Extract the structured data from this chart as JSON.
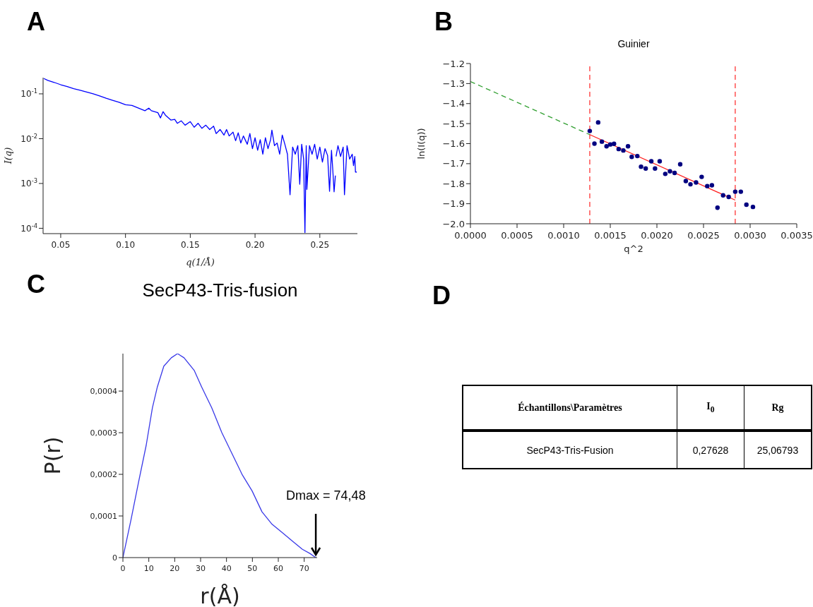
{
  "chart_data": [
    {
      "type": "line",
      "annotations": [
        "A"
      ],
      "xlabel": "q(1/Å)",
      "ylabel": "I(q)",
      "log": "y",
      "xlim": [
        0.0364,
        0.279
      ],
      "ylim": [
        7.6e-05,
        0.23
      ],
      "xticks": [
        {
          "value": 0.05,
          "label": "0.05"
        },
        {
          "value": 0.1,
          "label": "0.10"
        },
        {
          "value": 0.15,
          "label": "0.15"
        },
        {
          "value": 0.2,
          "label": "0.20"
        },
        {
          "value": 0.25,
          "label": "0.25"
        }
      ],
      "yticks": [
        {
          "value": 0.0001,
          "label": "10$^{-4}$"
        },
        {
          "value": 0.001,
          "label": "10$^{-3}$"
        },
        {
          "value": 0.01,
          "label": "10$^{-2}$"
        },
        {
          "value": 0.1,
          "label": "10$^{-1}$"
        }
      ],
      "x": [
        0.037,
        0.04,
        0.045,
        0.05,
        0.055,
        0.06,
        0.065,
        0.07,
        0.075,
        0.08,
        0.085,
        0.09,
        0.095,
        0.1,
        0.105,
        0.11,
        0.115,
        0.118,
        0.12,
        0.125,
        0.127,
        0.129,
        0.131,
        0.135,
        0.138,
        0.14,
        0.143,
        0.146,
        0.15,
        0.153,
        0.156,
        0.159,
        0.162,
        0.165,
        0.168,
        0.17,
        0.173,
        0.176,
        0.178,
        0.18,
        0.183,
        0.185,
        0.187,
        0.189,
        0.191,
        0.194,
        0.196,
        0.198,
        0.2,
        0.202,
        0.204,
        0.206,
        0.208,
        0.21,
        0.212,
        0.213,
        0.215,
        0.217,
        0.219,
        0.221,
        0.223,
        0.225,
        0.227,
        0.229,
        0.231,
        0.233,
        0.2345,
        0.236,
        0.2375,
        0.2385,
        0.2395,
        0.24,
        0.242,
        0.244,
        0.246,
        0.248,
        0.25,
        0.252,
        0.254,
        0.256,
        0.2575,
        0.259,
        0.26,
        0.261,
        0.262,
        0.2622,
        0.2625,
        0.264,
        0.266,
        0.268,
        0.269,
        0.271,
        0.273,
        0.275,
        0.276,
        0.277,
        0.2775,
        0.2785
      ],
      "series": [
        {
          "color": "#0000ff",
          "values": [
            0.22,
            0.2,
            0.18,
            0.16,
            0.145,
            0.13,
            0.12,
            0.11,
            0.1,
            0.09,
            0.08,
            0.072,
            0.065,
            0.057,
            0.055,
            0.048,
            0.042,
            0.048,
            0.042,
            0.038,
            0.029,
            0.04,
            0.033,
            0.026,
            0.027,
            0.022,
            0.025,
            0.02,
            0.024,
            0.018,
            0.022,
            0.017,
            0.02,
            0.016,
            0.019,
            0.013,
            0.016,
            0.012,
            0.016,
            0.0115,
            0.014,
            0.009,
            0.0135,
            0.008,
            0.0115,
            0.0075,
            0.013,
            0.006,
            0.0105,
            0.0055,
            0.0095,
            0.0045,
            0.0105,
            0.006,
            0.0095,
            0.0155,
            0.007,
            0.008,
            0.0045,
            0.012,
            0.0075,
            0.0045,
            0.00056,
            0.0065,
            0.0045,
            0.007,
            0.00096,
            0.0075,
            0.0035,
            8e-05,
            0.007,
            0.00074,
            0.007,
            0.0045,
            0.0075,
            0.0035,
            0.0065,
            0.003,
            0.006,
            0.0042,
            0.00067,
            0.0055,
            0.002,
            0.00065,
            0.0015,
            null,
            0.004,
            0.007,
            0.004,
            0.0065,
            0.00056,
            0.007,
            0.0035,
            0.0045,
            0.0025,
            0.004,
            0.0018,
            0.0018
          ]
        }
      ]
    },
    {
      "type": "scatter",
      "annotations": [
        "B"
      ],
      "title": "Guinier",
      "xlabel": "q^2",
      "ylabel": "ln(I(q))",
      "xlim": [
        0,
        0.0035
      ],
      "ylim": [
        -2.0,
        -1.2
      ],
      "xticks": [
        {
          "value": 0,
          "label": "0.0000"
        },
        {
          "value": 0.0005,
          "label": "0.0005"
        },
        {
          "value": 0.001,
          "label": "0.0010"
        },
        {
          "value": 0.0015,
          "label": "0.0015"
        },
        {
          "value": 0.002,
          "label": "0.0020"
        },
        {
          "value": 0.0025,
          "label": "0.0025"
        },
        {
          "value": 0.003,
          "label": "0.0030"
        },
        {
          "value": 0.0035,
          "label": "0.0035"
        }
      ],
      "yticks": [
        {
          "value": -2.0,
          "label": "−2.0"
        },
        {
          "value": -1.9,
          "label": "−1.9"
        },
        {
          "value": -1.8,
          "label": "−1.8"
        },
        {
          "value": -1.7,
          "label": "−1.7"
        },
        {
          "value": -1.6,
          "label": "−1.6"
        },
        {
          "value": -1.5,
          "label": "−1.5"
        },
        {
          "value": -1.4,
          "label": "−1.4"
        },
        {
          "value": -1.3,
          "label": "−1.3"
        },
        {
          "value": -1.2,
          "label": "−1.2"
        }
      ],
      "ref_lines": [
        {
          "axis": "x",
          "value": 0.00128,
          "color": "#ff5050",
          "line_style": "dashed"
        },
        {
          "axis": "x",
          "value": 0.00284,
          "color": "#ff5050",
          "line_style": "dashed"
        }
      ],
      "series": [
        {
          "type": "scatter",
          "color": "#000080",
          "marker": "circle",
          "x": [
            0.00128,
            0.00133,
            0.00137,
            0.00141,
            0.00146,
            0.0015,
            0.00154,
            0.00159,
            0.00164,
            0.00169,
            0.00173,
            0.00179,
            0.00183,
            0.00188,
            0.00194,
            0.00198,
            0.00203,
            0.00209,
            0.00214,
            0.00219,
            0.00225,
            0.00231,
            0.00236,
            0.00242,
            0.00248,
            0.00254,
            0.00259,
            0.00265,
            0.00271,
            0.00277,
            0.00284,
            0.0029,
            0.00296,
            0.00303
          ],
          "values": [
            -1.537,
            -1.6,
            -1.494,
            -1.59,
            -1.613,
            -1.604,
            -1.601,
            -1.627,
            -1.634,
            -1.613,
            -1.666,
            -1.662,
            -1.715,
            -1.724,
            -1.688,
            -1.724,
            -1.688,
            -1.751,
            -1.738,
            -1.746,
            -1.703,
            -1.787,
            -1.803,
            -1.794,
            -1.766,
            -1.812,
            -1.808,
            -1.92,
            -1.858,
            -1.866,
            -1.84,
            -1.84,
            -1.905,
            -1.916
          ]
        },
        {
          "type": "line",
          "color": "#ff2020",
          "line_style": "solid",
          "x": [
            0.00128,
            0.00284
          ],
          "values": [
            -1.555,
            -1.882
          ]
        },
        {
          "type": "line",
          "color": "#33a033",
          "line_style": "dashed",
          "x": [
            0,
            0.00128
          ],
          "values": [
            -1.29,
            -1.555
          ]
        }
      ]
    },
    {
      "type": "line",
      "annotations": [
        "C",
        {
          "text": "Dmax = 74,48",
          "x": 74.48,
          "y": 0
        }
      ],
      "title": "SecP43-Tris-fusion",
      "xlabel": "r(Å)",
      "ylabel": "P(r)",
      "xlim": [
        0,
        75
      ],
      "ylim": [
        0,
        0.00049
      ],
      "xticks": [
        0,
        10,
        20,
        30,
        40,
        50,
        60,
        70
      ],
      "yticks": [
        0,
        {
          "value": 0.0001,
          "label": "0,0001"
        },
        {
          "value": 0.0002,
          "label": "0,0002"
        },
        {
          "value": 0.0003,
          "label": "0,0003"
        },
        {
          "value": 0.0004,
          "label": "0,0004"
        }
      ],
      "x": [
        0,
        3.1,
        6,
        9,
        11.4,
        13.3,
        15.8,
        18.7,
        21.1,
        23.6,
        27.5,
        30.4,
        34.3,
        38.2,
        42.1,
        46,
        49.9,
        53.7,
        57.6,
        61.5,
        65.4,
        69.3,
        72.2,
        74.48
      ],
      "series": [
        {
          "color": "#3a3ae8",
          "values": [
            0,
            9e-05,
            0.00018,
            0.00027,
            0.00036,
            0.00041,
            0.00046,
            0.00048,
            0.00049,
            0.00048,
            0.00045,
            0.00041,
            0.00036,
            0.0003,
            0.00025,
            0.0002,
            0.00016,
            0.00011,
            8e-05,
            6e-05,
            4e-05,
            2e-05,
            1e-05,
            0
          ]
        }
      ]
    },
    {
      "type": "other",
      "annotations": [
        "D",
        "Échantillons\\Paramètres",
        "I$_{0}$",
        "Rg",
        "SecP43-Tris-Fusion",
        "0,27628",
        "25,06793"
      ]
    }
  ]
}
